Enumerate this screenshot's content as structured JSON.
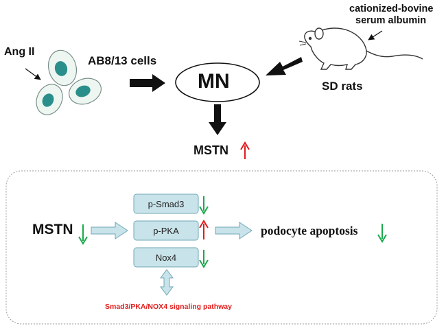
{
  "top": {
    "stimulus_label": "Ang II",
    "cell_label": "AB8/13 cells",
    "center_label": "MN",
    "rat_label": "SD rats",
    "rat_treatment_line1": "cationized-bovine",
    "rat_treatment_line2": "serum albumin",
    "result_label": "MSTN",
    "result_direction": "up"
  },
  "panel": {
    "input_label": "MSTN",
    "input_direction": "down",
    "pathway_boxes": [
      {
        "label": "p-Smad3",
        "direction": "down"
      },
      {
        "label": "p-PKA",
        "direction": "up"
      },
      {
        "label": "Nox4",
        "direction": "down"
      }
    ],
    "outcome_label": "podocyte apoptosis",
    "outcome_direction": "down",
    "pathway_name": "Smad3/PKA/NOX4 signaling pathway"
  },
  "colors": {
    "up_arrow": "#e11b1b",
    "down_arrow": "#1aa84c",
    "cell_fill": "#eef6f2",
    "nucleus": "#2a8f8a",
    "box_fill": "#c9e3ea",
    "box_stroke": "#6fa7b5",
    "block_arrow_fill": "#c9e3ea",
    "pathway_text": "#e11b1b"
  },
  "icons": {
    "cells": "cell-cluster-icon",
    "rat": "rat-icon"
  }
}
